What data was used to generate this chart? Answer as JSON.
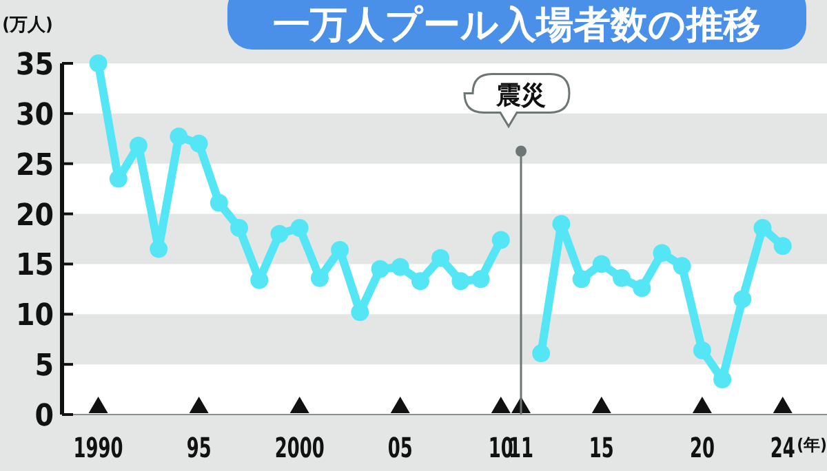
{
  "chart_data": {
    "type": "line",
    "title": "一万人プール入場者数の推移",
    "ylabel": "(万人)",
    "xlabel": "(年)",
    "x": [
      1990,
      1991,
      1992,
      1993,
      1994,
      1995,
      1996,
      1997,
      1998,
      1999,
      2000,
      2001,
      2002,
      2003,
      2004,
      2005,
      2006,
      2007,
      2008,
      2009,
      2010,
      2011,
      2012,
      2013,
      2014,
      2015,
      2016,
      2017,
      2018,
      2019,
      2020,
      2021,
      2022,
      2023,
      2024
    ],
    "series": [
      {
        "color": "#55e6f6",
        "values": [
          35,
          23.5,
          26.8,
          16.5,
          27.7,
          27,
          21.1,
          18.6,
          13.4,
          18,
          18.6,
          13.6,
          16.4,
          10.2,
          14.5,
          14.7,
          13.3,
          15.6,
          13.3,
          13.5,
          17.4,
          null,
          6.1,
          19,
          13.5,
          15,
          13.6,
          12.6,
          16.1,
          14.8,
          6.4,
          3.5,
          11.5,
          18.6,
          16.8
        ]
      }
    ],
    "xlim": [
      1988.2,
      2026.2
    ],
    "ylim": [
      0,
      35
    ],
    "xticks": [
      {
        "value": 1990,
        "label": "1990"
      },
      {
        "value": 1995,
        "label": "95"
      },
      {
        "value": 2000,
        "label": "2000"
      },
      {
        "value": 2005,
        "label": "05"
      },
      {
        "value": 2010,
        "label": "10"
      },
      {
        "value": 2011,
        "label": "11"
      },
      {
        "value": 2015,
        "label": "15"
      },
      {
        "value": 2020,
        "label": "20"
      },
      {
        "value": 2024,
        "label": "24"
      }
    ],
    "yticks": [
      0,
      5,
      10,
      15,
      20,
      25,
      30,
      35
    ],
    "ref_lines": [
      {
        "axis": "x",
        "value": 2011,
        "label": "震災",
        "color": "#6d7575"
      }
    ],
    "grid": "y",
    "marker": "circle",
    "line_style": "solid"
  }
}
